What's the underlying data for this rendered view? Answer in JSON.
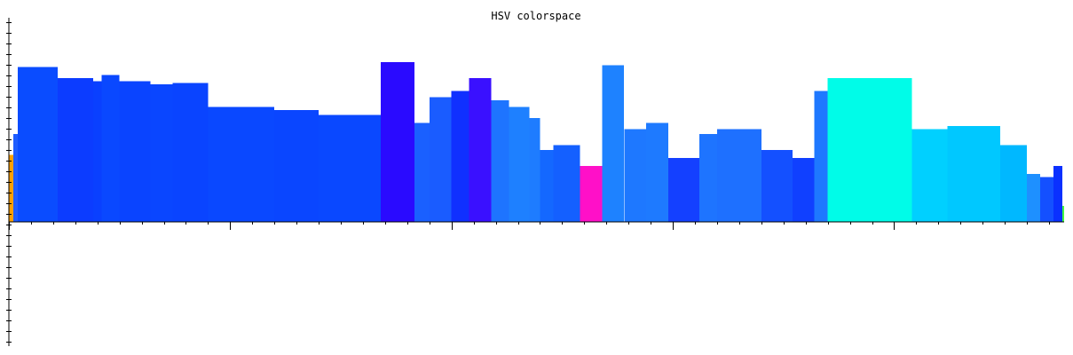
{
  "chart_data": {
    "type": "bar",
    "title": "HSV colorspace",
    "xlabel": "",
    "ylabel": "",
    "grid": false,
    "legend": "none",
    "segments": [
      {
        "from": 0,
        "to": 5,
        "value": 0.42,
        "color": "#ffa000"
      },
      {
        "from": 5,
        "to": 10,
        "value": 0.55,
        "color": "#1e5cff"
      },
      {
        "from": 10,
        "to": 55,
        "value": 0.97,
        "color": "#0a4cff"
      },
      {
        "from": 55,
        "to": 95,
        "value": 0.9,
        "color": "#0c3cff"
      },
      {
        "from": 95,
        "to": 105,
        "value": 0.88,
        "color": "#0a40ff"
      },
      {
        "from": 105,
        "to": 125,
        "value": 0.92,
        "color": "#0a48ff"
      },
      {
        "from": 125,
        "to": 160,
        "value": 0.88,
        "color": "#0a44ff"
      },
      {
        "from": 160,
        "to": 185,
        "value": 0.86,
        "color": "#0a46ff"
      },
      {
        "from": 185,
        "to": 225,
        "value": 0.87,
        "color": "#0a44ff"
      },
      {
        "from": 225,
        "to": 300,
        "value": 0.72,
        "color": "#0a48ff"
      },
      {
        "from": 300,
        "to": 350,
        "value": 0.7,
        "color": "#0a46ff"
      },
      {
        "from": 350,
        "to": 420,
        "value": 0.67,
        "color": "#0a48ff"
      },
      {
        "from": 420,
        "to": 458,
        "value": 1.0,
        "color": "#2a0aff"
      },
      {
        "from": 458,
        "to": 475,
        "value": 0.62,
        "color": "#1a60ff"
      },
      {
        "from": 475,
        "to": 500,
        "value": 0.78,
        "color": "#1a5cff"
      },
      {
        "from": 500,
        "to": 520,
        "value": 0.82,
        "color": "#1030ff"
      },
      {
        "from": 520,
        "to": 545,
        "value": 0.9,
        "color": "#3a10ff"
      },
      {
        "from": 545,
        "to": 565,
        "value": 0.76,
        "color": "#1e74ff"
      },
      {
        "from": 565,
        "to": 588,
        "value": 0.72,
        "color": "#1e80ff"
      },
      {
        "from": 588,
        "to": 600,
        "value": 0.65,
        "color": "#1e7cff"
      },
      {
        "from": 600,
        "to": 615,
        "value": 0.45,
        "color": "#1468ff"
      },
      {
        "from": 615,
        "to": 645,
        "value": 0.48,
        "color": "#1460ff"
      },
      {
        "from": 645,
        "to": 670,
        "value": 0.35,
        "color": "#ff10c8"
      },
      {
        "from": 670,
        "to": 695,
        "value": 0.98,
        "color": "#1e82ff"
      },
      {
        "from": 695,
        "to": 720,
        "value": 0.58,
        "color": "#1e78ff"
      },
      {
        "from": 720,
        "to": 745,
        "value": 0.62,
        "color": "#1e7aff"
      },
      {
        "from": 745,
        "to": 780,
        "value": 0.4,
        "color": "#1440ff"
      },
      {
        "from": 780,
        "to": 800,
        "value": 0.55,
        "color": "#1e74ff"
      },
      {
        "from": 800,
        "to": 850,
        "value": 0.58,
        "color": "#1e70ff"
      },
      {
        "from": 850,
        "to": 885,
        "value": 0.45,
        "color": "#1450ff"
      },
      {
        "from": 885,
        "to": 910,
        "value": 0.4,
        "color": "#1040ff"
      },
      {
        "from": 910,
        "to": 925,
        "value": 0.82,
        "color": "#1e78ff"
      },
      {
        "from": 925,
        "to": 1020,
        "value": 0.9,
        "color": "#00fce8"
      },
      {
        "from": 1020,
        "to": 1060,
        "value": 0.58,
        "color": "#00d0ff"
      },
      {
        "from": 1060,
        "to": 1120,
        "value": 0.6,
        "color": "#00c8ff"
      },
      {
        "from": 1120,
        "to": 1150,
        "value": 0.48,
        "color": "#00b8ff"
      },
      {
        "from": 1150,
        "to": 1165,
        "value": 0.3,
        "color": "#1e90ff"
      },
      {
        "from": 1165,
        "to": 1180,
        "value": 0.28,
        "color": "#1450ff"
      },
      {
        "from": 1180,
        "to": 1190,
        "value": 0.35,
        "color": "#0a30ff"
      },
      {
        "from": 1190,
        "to": 1192,
        "value": 0.1,
        "color": "#40ff40"
      }
    ],
    "xlim": [
      0,
      1192
    ],
    "ylim": [
      -1,
      1
    ],
    "major_x_ticks": [
      0,
      250,
      500,
      750,
      1000
    ]
  }
}
